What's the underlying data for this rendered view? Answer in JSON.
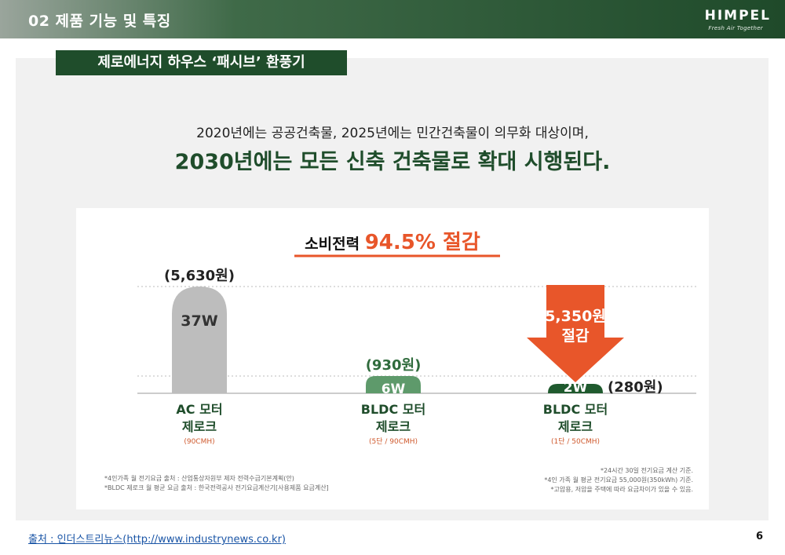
{
  "header": {
    "title": "02 제품 기능 및 특징",
    "logo": "HIMPEL",
    "logo_tagline": "Fresh Air Together"
  },
  "section_label": "제로에너지 하우스 ‘패시브’ 환풍기",
  "intro": {
    "line1": "2020년에는 공공건축물, 2025년에는 민간건축물이 의무화 대상이며,",
    "line2": "2030년에는 모든 신축 건축물로 확대 시행된다."
  },
  "chart_data": {
    "type": "bar",
    "title_prefix": "소비전력",
    "title_highlight": "94.5% 절감",
    "categories": [
      "AC 모터 제로크",
      "BLDC 모터 제로크",
      "BLDC 모터 제로크"
    ],
    "category_line1": [
      "AC 모터",
      "BLDC 모터",
      "BLDC 모터"
    ],
    "category_line2": [
      "제로크",
      "제로크",
      "제로크"
    ],
    "category_sub": [
      "(90CMH)",
      "(5단 / 90CMH)",
      "(1단 / 50CMH)"
    ],
    "series": [
      {
        "values": [
          37,
          6,
          2
        ]
      }
    ],
    "value_labels": [
      "37W",
      "6W",
      "2W"
    ],
    "cost_labels": [
      "(5,630원)",
      "(930원)",
      "(280원)"
    ],
    "ylim": [
      0,
      37
    ],
    "bar_colors": [
      "#bdbdbd",
      "#5e9a6b",
      "#1f5a2e"
    ],
    "savings": {
      "line1": "5,350원",
      "line2": "절감",
      "color": "#e8562a"
    },
    "notes_left": [
      "*4인가족 월 전기요금 출처 : 산업통상자원부 제자 전력수급기본계획(안)",
      "*BLDC 제로크 월 평균 요금 출처 : 한국전력공사 전기요금계산기[사용제품 요금계산]"
    ],
    "notes_right": [
      "*24시간 30일 전기요금 계산 기준.",
      "*4인 가족 월 평균 전기요금 55,000원(350kWh) 기준.",
      "*고압용, 저압을 주택에 따라 요금차이가 있을 수 있음."
    ]
  },
  "footer": {
    "source": "출처 : 인더스트리뉴스(http://www.industrynews.co.kr)",
    "page": "6"
  },
  "colors": {
    "brand_green": "#1f4d2b",
    "accent_orange": "#e8562a"
  }
}
